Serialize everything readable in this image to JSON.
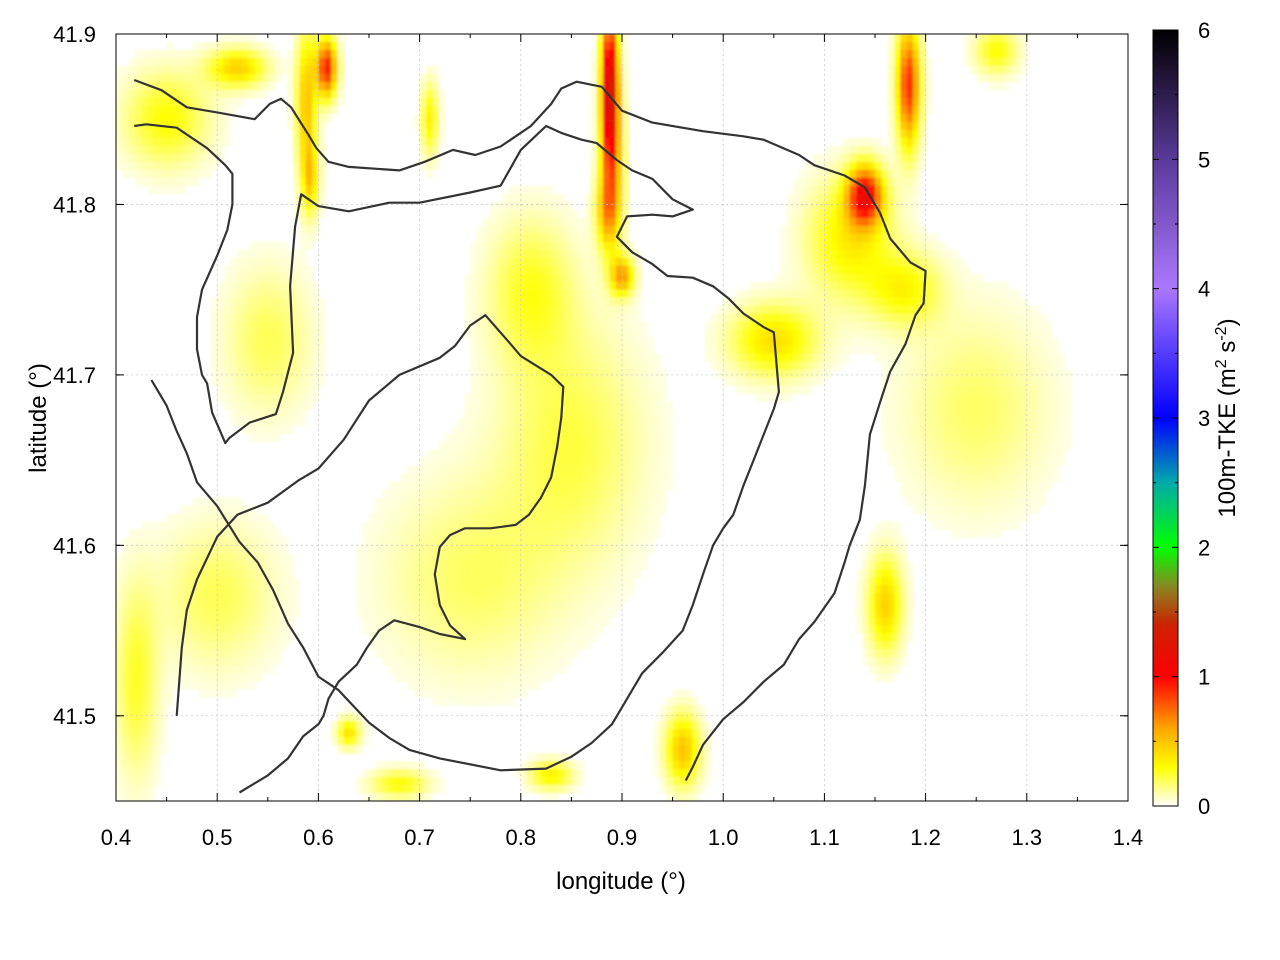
{
  "chart_data": {
    "type": "heatmap",
    "title": "",
    "xlabel": "longitude (°)",
    "ylabel": "latitude (°)",
    "xlim": [
      0.4,
      1.4
    ],
    "ylim": [
      41.45,
      41.9
    ],
    "x_ticks": [
      {
        "value": 0.4,
        "label": "0.4"
      },
      {
        "value": 0.5,
        "label": "0.5"
      },
      {
        "value": 0.6,
        "label": "0.6"
      },
      {
        "value": 0.7,
        "label": "0.7"
      },
      {
        "value": 0.8,
        "label": "0.8"
      },
      {
        "value": 0.9,
        "label": "0.9"
      },
      {
        "value": 1.0,
        "label": "1.0"
      },
      {
        "value": 1.1,
        "label": "1.1"
      },
      {
        "value": 1.2,
        "label": "1.2"
      },
      {
        "value": 1.3,
        "label": "1.3"
      },
      {
        "value": 1.4,
        "label": "1.4"
      }
    ],
    "y_ticks": [
      {
        "value": 41.5,
        "label": "41.5"
      },
      {
        "value": 41.6,
        "label": "41.6"
      },
      {
        "value": 41.7,
        "label": "41.7"
      },
      {
        "value": 41.8,
        "label": "41.8"
      },
      {
        "value": 41.9,
        "label": "41.9"
      }
    ],
    "grid": true,
    "colorbar": {
      "label_main": "100m-TKE (m",
      "label_sup1": "2",
      "label_mid": " s",
      "label_sup2": "-2",
      "label_end": ")",
      "range": [
        0,
        6
      ],
      "ticks": [
        {
          "value": 0,
          "label": "0"
        },
        {
          "value": 1,
          "label": "1"
        },
        {
          "value": 2,
          "label": "2"
        },
        {
          "value": 3,
          "label": "3"
        },
        {
          "value": 4,
          "label": "4"
        },
        {
          "value": 5,
          "label": "5"
        },
        {
          "value": 6,
          "label": "6"
        }
      ],
      "stops": [
        {
          "value": 0.0,
          "color": "#ffffff"
        },
        {
          "value": 0.3,
          "color": "#ffff00"
        },
        {
          "value": 0.6,
          "color": "#ffa500"
        },
        {
          "value": 1.0,
          "color": "#ff0000"
        },
        {
          "value": 1.4,
          "color": "#cc2200"
        },
        {
          "value": 1.7,
          "color": "#888822"
        },
        {
          "value": 2.0,
          "color": "#00ff00"
        },
        {
          "value": 2.5,
          "color": "#00aaaa"
        },
        {
          "value": 3.0,
          "color": "#0000ff"
        },
        {
          "value": 4.0,
          "color": "#aa77ff"
        },
        {
          "value": 5.0,
          "color": "#5a3a9a"
        },
        {
          "value": 6.0,
          "color": "#000000"
        }
      ]
    },
    "hotspots": [
      {
        "lon": 0.888,
        "lat": 41.87,
        "value": 1.3,
        "slon": 0.006,
        "slat": 0.03
      },
      {
        "lon": 0.89,
        "lat": 41.82,
        "value": 0.5,
        "slon": 0.008,
        "slat": 0.03
      },
      {
        "lon": 0.885,
        "lat": 41.795,
        "value": 0.4,
        "slon": 0.008,
        "slat": 0.015
      },
      {
        "lon": 0.9,
        "lat": 41.758,
        "value": 0.6,
        "slon": 0.008,
        "slat": 0.008
      },
      {
        "lon": 0.608,
        "lat": 41.88,
        "value": 0.95,
        "slon": 0.007,
        "slat": 0.012
      },
      {
        "lon": 0.588,
        "lat": 41.86,
        "value": 0.5,
        "slon": 0.007,
        "slat": 0.03
      },
      {
        "lon": 0.592,
        "lat": 41.815,
        "value": 0.4,
        "slon": 0.006,
        "slat": 0.015
      },
      {
        "lon": 0.52,
        "lat": 41.88,
        "value": 0.45,
        "slon": 0.02,
        "slat": 0.008
      },
      {
        "lon": 0.45,
        "lat": 41.85,
        "value": 0.3,
        "slon": 0.03,
        "slat": 0.02
      },
      {
        "lon": 0.71,
        "lat": 41.85,
        "value": 0.35,
        "slon": 0.006,
        "slat": 0.015
      },
      {
        "lon": 1.183,
        "lat": 41.87,
        "value": 0.9,
        "slon": 0.008,
        "slat": 0.025
      },
      {
        "lon": 1.14,
        "lat": 41.805,
        "value": 1.0,
        "slon": 0.012,
        "slat": 0.012
      },
      {
        "lon": 1.125,
        "lat": 41.78,
        "value": 0.35,
        "slon": 0.03,
        "slat": 0.025
      },
      {
        "lon": 1.27,
        "lat": 41.89,
        "value": 0.3,
        "slon": 0.015,
        "slat": 0.01
      },
      {
        "lon": 1.05,
        "lat": 41.72,
        "value": 0.4,
        "slon": 0.03,
        "slat": 0.015
      },
      {
        "lon": 1.18,
        "lat": 41.75,
        "value": 0.3,
        "slon": 0.025,
        "slat": 0.015
      },
      {
        "lon": 1.16,
        "lat": 41.565,
        "value": 0.45,
        "slon": 0.012,
        "slat": 0.02
      },
      {
        "lon": 0.96,
        "lat": 41.48,
        "value": 0.5,
        "slon": 0.012,
        "slat": 0.015
      },
      {
        "lon": 0.63,
        "lat": 41.49,
        "value": 0.4,
        "slon": 0.008,
        "slat": 0.006
      },
      {
        "lon": 0.68,
        "lat": 41.46,
        "value": 0.3,
        "slon": 0.02,
        "slat": 0.006
      },
      {
        "lon": 0.83,
        "lat": 41.465,
        "value": 0.35,
        "slon": 0.015,
        "slat": 0.006
      },
      {
        "lon": 0.42,
        "lat": 41.52,
        "value": 0.25,
        "slon": 0.015,
        "slat": 0.04
      },
      {
        "lon": 0.5,
        "lat": 41.57,
        "value": 0.2,
        "slon": 0.04,
        "slat": 0.03
      },
      {
        "lon": 0.85,
        "lat": 41.66,
        "value": 0.22,
        "slon": 0.05,
        "slat": 0.05
      },
      {
        "lon": 0.75,
        "lat": 41.58,
        "value": 0.18,
        "slon": 0.06,
        "slat": 0.04
      },
      {
        "lon": 1.25,
        "lat": 41.68,
        "value": 0.18,
        "slon": 0.05,
        "slat": 0.04
      },
      {
        "lon": 0.55,
        "lat": 41.72,
        "value": 0.2,
        "slon": 0.03,
        "slat": 0.03
      },
      {
        "lon": 0.33,
        "lat": 41.62,
        "value": 0.0,
        "slon": 0.01,
        "slat": 0.01
      },
      {
        "lon": 0.81,
        "lat": 41.75,
        "value": 0.25,
        "slon": 0.03,
        "slat": 0.03
      }
    ],
    "contours": [
      [
        [
          0.418,
          41.873
        ],
        [
          0.445,
          41.867
        ],
        [
          0.47,
          41.857
        ],
        [
          0.5,
          41.854
        ],
        [
          0.537,
          41.85
        ],
        [
          0.552,
          41.859
        ],
        [
          0.563,
          41.862
        ],
        [
          0.573,
          41.857
        ],
        [
          0.59,
          41.841
        ],
        [
          0.598,
          41.833
        ],
        [
          0.61,
          41.825
        ],
        [
          0.63,
          41.822
        ],
        [
          0.68,
          41.82
        ],
        [
          0.705,
          41.825
        ],
        [
          0.733,
          41.832
        ],
        [
          0.755,
          41.829
        ],
        [
          0.78,
          41.834
        ],
        [
          0.81,
          41.846
        ],
        [
          0.83,
          41.859
        ],
        [
          0.84,
          41.868
        ],
        [
          0.855,
          41.872
        ],
        [
          0.88,
          41.869
        ],
        [
          0.9,
          41.855
        ],
        [
          0.93,
          41.848
        ],
        [
          0.98,
          41.843
        ],
        [
          1.02,
          41.84
        ],
        [
          1.04,
          41.838
        ],
        [
          1.075,
          41.829
        ],
        [
          1.09,
          41.823
        ],
        [
          1.12,
          41.817
        ],
        [
          1.14,
          41.81
        ],
        [
          1.155,
          41.795
        ],
        [
          1.165,
          41.78
        ],
        [
          1.185,
          41.766
        ],
        [
          1.2,
          41.761
        ],
        [
          1.198,
          41.742
        ],
        [
          1.19,
          41.735
        ],
        [
          1.18,
          41.718
        ],
        [
          1.165,
          41.702
        ],
        [
          1.155,
          41.684
        ],
        [
          1.145,
          41.665
        ],
        [
          1.14,
          41.635
        ],
        [
          1.135,
          41.615
        ],
        [
          1.125,
          41.6
        ],
        [
          1.12,
          41.59
        ],
        [
          1.11,
          41.572
        ],
        [
          1.09,
          41.555
        ],
        [
          1.075,
          41.545
        ],
        [
          1.06,
          41.53
        ],
        [
          1.04,
          41.52
        ],
        [
          1.02,
          41.508
        ],
        [
          1.0,
          41.498
        ],
        [
          0.98,
          41.483
        ],
        [
          0.97,
          41.47
        ],
        [
          0.963,
          41.462
        ]
      ],
      [
        [
          0.418,
          41.846
        ],
        [
          0.43,
          41.847
        ],
        [
          0.46,
          41.845
        ],
        [
          0.49,
          41.833
        ],
        [
          0.508,
          41.823
        ],
        [
          0.515,
          41.818
        ],
        [
          0.515,
          41.8
        ],
        [
          0.51,
          41.785
        ],
        [
          0.5,
          41.77
        ],
        [
          0.485,
          41.75
        ],
        [
          0.48,
          41.734
        ],
        [
          0.48,
          41.715
        ],
        [
          0.485,
          41.7
        ],
        [
          0.49,
          41.695
        ],
        [
          0.495,
          41.678
        ],
        [
          0.508,
          41.66
        ],
        [
          0.512,
          41.663
        ],
        [
          0.532,
          41.672
        ],
        [
          0.558,
          41.677
        ],
        [
          0.565,
          41.69
        ],
        [
          0.575,
          41.713
        ],
        [
          0.572,
          41.752
        ],
        [
          0.577,
          41.787
        ],
        [
          0.583,
          41.806
        ],
        [
          0.6,
          41.799
        ],
        [
          0.63,
          41.796
        ],
        [
          0.67,
          41.801
        ],
        [
          0.7,
          41.801
        ],
        [
          0.75,
          41.807
        ],
        [
          0.78,
          41.811
        ],
        [
          0.8,
          41.832
        ],
        [
          0.825,
          41.846
        ],
        [
          0.84,
          41.842
        ],
        [
          0.86,
          41.838
        ],
        [
          0.875,
          41.836
        ],
        [
          0.895,
          41.826
        ],
        [
          0.91,
          41.82
        ],
        [
          0.93,
          41.815
        ],
        [
          0.95,
          41.803
        ],
        [
          0.97,
          41.797
        ],
        [
          0.95,
          41.793
        ],
        [
          0.93,
          41.794
        ],
        [
          0.905,
          41.793
        ],
        [
          0.895,
          41.781
        ],
        [
          0.91,
          41.772
        ],
        [
          0.93,
          41.765
        ],
        [
          0.945,
          41.758
        ],
        [
          0.97,
          41.757
        ],
        [
          0.99,
          41.752
        ],
        [
          1.005,
          41.745
        ],
        [
          1.02,
          41.736
        ],
        [
          1.04,
          41.728
        ],
        [
          1.05,
          41.725
        ],
        [
          1.055,
          41.69
        ],
        [
          1.05,
          41.68
        ],
        [
          1.04,
          41.665
        ],
        [
          1.03,
          41.65
        ],
        [
          1.02,
          41.635
        ],
        [
          1.01,
          41.618
        ],
        [
          1.0,
          41.61
        ],
        [
          0.99,
          41.6
        ],
        [
          0.98,
          41.583
        ],
        [
          0.97,
          41.565
        ],
        [
          0.96,
          41.55
        ],
        [
          0.94,
          41.537
        ],
        [
          0.92,
          41.525
        ],
        [
          0.91,
          41.515
        ],
        [
          0.9,
          41.505
        ],
        [
          0.89,
          41.495
        ],
        [
          0.87,
          41.484
        ],
        [
          0.85,
          41.476
        ],
        [
          0.825,
          41.469
        ],
        [
          0.78,
          41.468
        ],
        [
          0.72,
          41.475
        ],
        [
          0.69,
          41.48
        ],
        [
          0.67,
          41.487
        ],
        [
          0.65,
          41.496
        ],
        [
          0.62,
          41.515
        ],
        [
          0.6,
          41.523
        ],
        [
          0.585,
          41.54
        ],
        [
          0.57,
          41.554
        ],
        [
          0.555,
          41.574
        ],
        [
          0.54,
          41.59
        ],
        [
          0.522,
          41.602
        ],
        [
          0.5,
          41.623
        ],
        [
          0.48,
          41.637
        ],
        [
          0.47,
          41.654
        ],
        [
          0.46,
          41.667
        ],
        [
          0.45,
          41.682
        ],
        [
          0.435,
          41.697
        ]
      ]
    ],
    "contours_extra": [
      [
        [
          0.46,
          41.5
        ],
        [
          0.465,
          41.54
        ],
        [
          0.47,
          41.562
        ],
        [
          0.48,
          41.58
        ],
        [
          0.5,
          41.605
        ],
        [
          0.52,
          41.618
        ],
        [
          0.55,
          41.625
        ],
        [
          0.58,
          41.638
        ],
        [
          0.6,
          41.645
        ],
        [
          0.625,
          41.662
        ],
        [
          0.65,
          41.685
        ],
        [
          0.68,
          41.7
        ],
        [
          0.72,
          41.71
        ],
        [
          0.735,
          41.717
        ],
        [
          0.75,
          41.729
        ],
        [
          0.765,
          41.735
        ],
        [
          0.79,
          41.718
        ],
        [
          0.8,
          41.711
        ],
        [
          0.83,
          41.7
        ],
        [
          0.842,
          41.693
        ],
        [
          0.84,
          41.675
        ],
        [
          0.836,
          41.658
        ],
        [
          0.83,
          41.64
        ],
        [
          0.82,
          41.628
        ],
        [
          0.808,
          41.618
        ],
        [
          0.795,
          41.612
        ],
        [
          0.77,
          41.61
        ],
        [
          0.745,
          41.61
        ],
        [
          0.73,
          41.606
        ],
        [
          0.72,
          41.599
        ],
        [
          0.715,
          41.583
        ],
        [
          0.72,
          41.565
        ],
        [
          0.73,
          41.553
        ],
        [
          0.745,
          41.545
        ],
        [
          0.72,
          41.548
        ],
        [
          0.7,
          41.552
        ],
        [
          0.675,
          41.556
        ],
        [
          0.66,
          41.55
        ],
        [
          0.648,
          41.54
        ],
        [
          0.638,
          41.53
        ],
        [
          0.62,
          41.52
        ],
        [
          0.61,
          41.51
        ],
        [
          0.605,
          41.5
        ],
        [
          0.6,
          41.495
        ],
        [
          0.585,
          41.488
        ],
        [
          0.57,
          41.475
        ],
        [
          0.55,
          41.465
        ],
        [
          0.522,
          41.455
        ]
      ]
    ]
  }
}
